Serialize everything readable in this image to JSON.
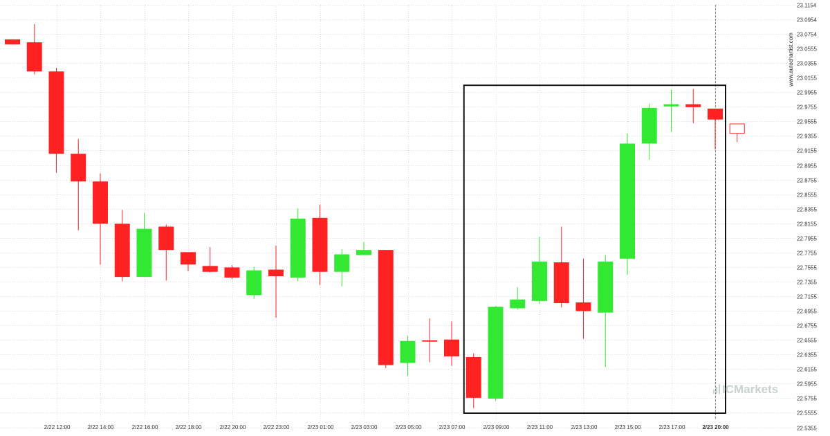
{
  "colors": {
    "bullish": "#33e833",
    "bearish": "#ff2222",
    "box": "#111111",
    "grid": "#d9d9d9",
    "brand": "#c8d2cc"
  },
  "branding": {
    "watermark": "www.autochartist.com",
    "logo": "ICMarkets"
  },
  "chart_data": {
    "type": "candlestick",
    "grid": true,
    "ylim": [
      22.5455,
      23.1154
    ],
    "y_ticks": [
      "23.1154",
      "23.0954",
      "23.0754",
      "23.0555",
      "23.0355",
      "23.0155",
      "22.9955",
      "22.9755",
      "22.9555",
      "22.9355",
      "22.9155",
      "22.8955",
      "22.8755",
      "22.8555",
      "22.8355",
      "22.8155",
      "22.7955",
      "22.7755",
      "22.7555",
      "22.7355",
      "22.7155",
      "22.6955",
      "22.6755",
      "22.6555",
      "22.6355",
      "22.6155",
      "22.5955",
      "22.5755",
      "22.5555",
      "22.5355"
    ],
    "x_ticks": [
      {
        "label": "2/22 12:00",
        "index": 2
      },
      {
        "label": "2/22 14:00",
        "index": 4
      },
      {
        "label": "2/22 16:00",
        "index": 6
      },
      {
        "label": "2/22 18:00",
        "index": 8
      },
      {
        "label": "2/22 20:00",
        "index": 10
      },
      {
        "label": "2/22 23:00",
        "index": 12
      },
      {
        "label": "2/23 01:00",
        "index": 14
      },
      {
        "label": "2/23 03:00",
        "index": 16
      },
      {
        "label": "2/23 05:00",
        "index": 18
      },
      {
        "label": "2/23 07:00",
        "index": 20
      },
      {
        "label": "2/23 09:00",
        "index": 22
      },
      {
        "label": "2/23 11:00",
        "index": 24
      },
      {
        "label": "2/23 13:00",
        "index": 26
      },
      {
        "label": "2/23 15:00",
        "index": 28
      },
      {
        "label": "2/23 17:00",
        "index": 30
      },
      {
        "label": "2/23 20:00",
        "index": 32,
        "bold": true
      }
    ],
    "candles": [
      {
        "o": 23.068,
        "h": 23.068,
        "l": 23.061,
        "c": 23.061
      },
      {
        "o": 23.064,
        "h": 23.089,
        "l": 23.02,
        "c": 23.024
      },
      {
        "o": 23.024,
        "h": 23.029,
        "l": 22.885,
        "c": 22.911
      },
      {
        "o": 22.911,
        "h": 22.931,
        "l": 22.806,
        "c": 22.873
      },
      {
        "o": 22.873,
        "h": 22.884,
        "l": 22.759,
        "c": 22.815
      },
      {
        "o": 22.815,
        "h": 22.834,
        "l": 22.736,
        "c": 22.742
      },
      {
        "o": 22.742,
        "h": 22.83,
        "l": 22.742,
        "c": 22.808
      },
      {
        "o": 22.811,
        "h": 22.814,
        "l": 22.737,
        "c": 22.779
      },
      {
        "o": 22.776,
        "h": 22.776,
        "l": 22.75,
        "c": 22.759
      },
      {
        "o": 22.757,
        "h": 22.783,
        "l": 22.748,
        "c": 22.749
      },
      {
        "o": 22.755,
        "h": 22.758,
        "l": 22.739,
        "c": 22.741
      },
      {
        "o": 22.717,
        "h": 22.756,
        "l": 22.712,
        "c": 22.751
      },
      {
        "o": 22.752,
        "h": 22.785,
        "l": 22.686,
        "c": 22.743
      },
      {
        "o": 22.741,
        "h": 22.836,
        "l": 22.736,
        "c": 22.822
      },
      {
        "o": 22.823,
        "h": 22.841,
        "l": 22.731,
        "c": 22.749
      },
      {
        "o": 22.749,
        "h": 22.78,
        "l": 22.729,
        "c": 22.773
      },
      {
        "o": 22.772,
        "h": 22.79,
        "l": 22.772,
        "c": 22.779
      },
      {
        "o": 22.779,
        "h": 22.779,
        "l": 22.617,
        "c": 22.621
      },
      {
        "o": 22.624,
        "h": 22.661,
        "l": 22.606,
        "c": 22.654
      },
      {
        "o": 22.655,
        "h": 22.685,
        "l": 22.625,
        "c": 22.654
      },
      {
        "o": 22.656,
        "h": 22.681,
        "l": 22.62,
        "c": 22.633
      },
      {
        "o": 22.632,
        "h": 22.637,
        "l": 22.562,
        "c": 22.576
      },
      {
        "o": 22.575,
        "h": 22.702,
        "l": 22.572,
        "c": 22.701
      },
      {
        "o": 22.699,
        "h": 22.728,
        "l": 22.697,
        "c": 22.711
      },
      {
        "o": 22.709,
        "h": 22.797,
        "l": 22.705,
        "c": 22.763
      },
      {
        "o": 22.762,
        "h": 22.811,
        "l": 22.7,
        "c": 22.706
      },
      {
        "o": 22.707,
        "h": 22.767,
        "l": 22.657,
        "c": 22.695
      },
      {
        "o": 22.693,
        "h": 22.772,
        "l": 22.618,
        "c": 22.763
      },
      {
        "o": 22.767,
        "h": 22.939,
        "l": 22.745,
        "c": 22.925
      },
      {
        "o": 22.925,
        "h": 22.98,
        "l": 22.903,
        "c": 22.974
      },
      {
        "o": 22.976,
        "h": 22.999,
        "l": 22.941,
        "c": 22.979
      },
      {
        "o": 22.979,
        "h": 23.0,
        "l": 22.953,
        "c": 22.975
      },
      {
        "o": 22.973,
        "h": 22.973,
        "l": 22.917,
        "c": 22.958
      },
      {
        "o": 22.952,
        "h": 22.952,
        "l": 22.927,
        "c": 22.939,
        "hollow": true
      }
    ],
    "highlight_box": {
      "from_index": 21,
      "to_index": 32,
      "y_top": 23.005,
      "y_bottom": 22.555
    },
    "current_time_index": 32
  }
}
